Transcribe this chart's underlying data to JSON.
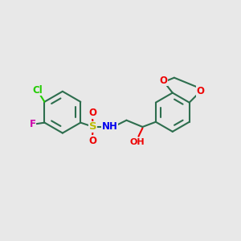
{
  "bg_color": "#e8e8e8",
  "bond_color": "#2d6e4e",
  "bond_width": 1.5,
  "atom_colors": {
    "Cl": "#22cc00",
    "F": "#cc00aa",
    "S": "#bbbb00",
    "O": "#ee0000",
    "N": "#0000ee",
    "C": "#2d6e4e"
  },
  "font_size": 8.5
}
